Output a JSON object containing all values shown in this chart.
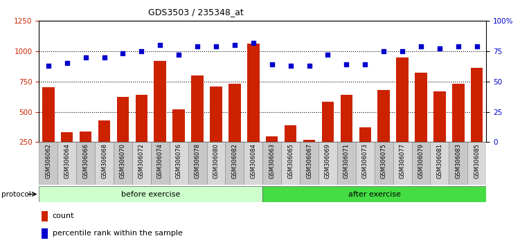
{
  "title": "GDS3503 / 235348_at",
  "samples": [
    "GSM306062",
    "GSM306064",
    "GSM306066",
    "GSM306068",
    "GSM306070",
    "GSM306072",
    "GSM306074",
    "GSM306076",
    "GSM306078",
    "GSM306080",
    "GSM306082",
    "GSM306084",
    "GSM306063",
    "GSM306065",
    "GSM306067",
    "GSM306069",
    "GSM306071",
    "GSM306073",
    "GSM306075",
    "GSM306077",
    "GSM306079",
    "GSM306081",
    "GSM306083",
    "GSM306085"
  ],
  "counts": [
    700,
    330,
    340,
    430,
    620,
    640,
    920,
    520,
    800,
    710,
    730,
    1060,
    300,
    390,
    270,
    580,
    640,
    370,
    680,
    950,
    820,
    670,
    730,
    860
  ],
  "percentiles": [
    63,
    65,
    70,
    70,
    73,
    75,
    80,
    72,
    79,
    79,
    80,
    82,
    64,
    63,
    63,
    72,
    64,
    64,
    75,
    75,
    79,
    77,
    79,
    79
  ],
  "n_before": 12,
  "n_after": 12,
  "bar_color": "#cc2200",
  "dot_color": "#0000cc",
  "before_color": "#ccffcc",
  "after_color": "#44dd44",
  "ylim_left": [
    250,
    1250
  ],
  "ylim_right": [
    0,
    100
  ],
  "yticks_left": [
    250,
    500,
    750,
    1000,
    1250
  ],
  "yticks_right": [
    0,
    25,
    50,
    75,
    100
  ],
  "ytick_labels_right": [
    "0",
    "25",
    "50",
    "75",
    "100%"
  ],
  "grid_values": [
    500,
    750,
    1000
  ],
  "protocol_label": "protocol",
  "before_label": "before exercise",
  "after_label": "after exercise",
  "legend_count": "count",
  "legend_percentile": "percentile rank within the sample",
  "bg_color": "#ffffff",
  "tick_colors": [
    "#c8c8c8",
    "#d8d8d8"
  ]
}
